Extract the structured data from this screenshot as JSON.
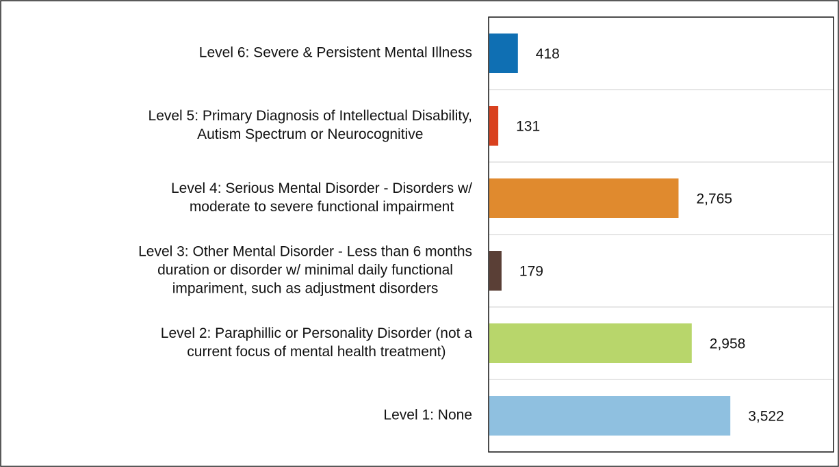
{
  "chart_data": {
    "type": "hbar",
    "categories": [
      [
        "Level 6: Severe & Persistent Mental Illness"
      ],
      [
        "Level 5: Primary Diagnosis of Intellectual Disability,",
        "Autism Spectrum or Neurocognitive"
      ],
      [
        "Level 4: Serious Mental Disorder - Disorders w/",
        "moderate to severe functional impairment"
      ],
      [
        "Level 3: Other Mental Disorder - Less than 6 months",
        "duration or disorder w/ minimal daily functional",
        "impariment, such as adjustment disorders"
      ],
      [
        "Level 2: Paraphillic or Personality Disorder (not a",
        "current focus of mental health treatment)"
      ],
      [
        "Level 1: None"
      ]
    ],
    "values": [
      418,
      131,
      2765,
      179,
      2958,
      3522
    ],
    "value_labels": [
      "418",
      "131",
      "2,765",
      "179",
      "2,958",
      "3,522"
    ],
    "colors": [
      "#0f6fb3",
      "#d9411e",
      "#e08a2e",
      "#5a3f36",
      "#b8d66b",
      "#8fc0e0"
    ],
    "xlim": [
      0,
      5000
    ]
  }
}
